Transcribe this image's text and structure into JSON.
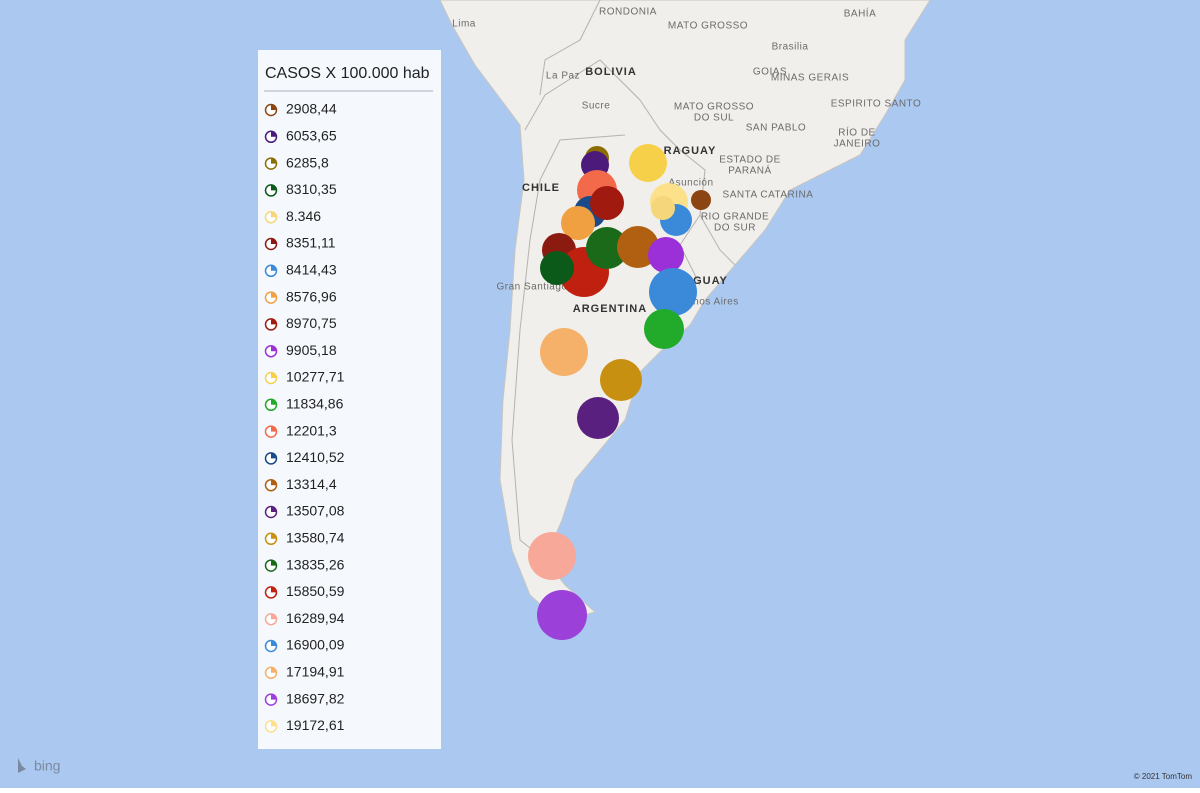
{
  "legend": {
    "title": "CASOS X 100.000 hab",
    "entries": [
      {
        "label": "2908,44",
        "color": "#8b4513"
      },
      {
        "label": "6053,65",
        "color": "#4b1a7a"
      },
      {
        "label": "6285,8",
        "color": "#8b6d00"
      },
      {
        "label": "8310,35",
        "color": "#0b5a1a"
      },
      {
        "label": "8.346",
        "color": "#f5d67a"
      },
      {
        "label": "8351,11",
        "color": "#8b1a10"
      },
      {
        "label": "8414,43",
        "color": "#3a8ad9"
      },
      {
        "label": "8576,96",
        "color": "#f0a040"
      },
      {
        "label": "8970,75",
        "color": "#a01a10"
      },
      {
        "label": "9905,18",
        "color": "#9b30d9"
      },
      {
        "label": "10277,71",
        "color": "#f7d04a"
      },
      {
        "label": "11834,86",
        "color": "#22aa2a"
      },
      {
        "label": "12201,3",
        "color": "#f26a4a"
      },
      {
        "label": "12410,52",
        "color": "#1a4a8a"
      },
      {
        "label": "13314,4",
        "color": "#b06010"
      },
      {
        "label": "13507,08",
        "color": "#5a2080"
      },
      {
        "label": "13580,74",
        "color": "#c79010"
      },
      {
        "label": "13835,26",
        "color": "#1a6a1a"
      },
      {
        "label": "15850,59",
        "color": "#c02010"
      },
      {
        "label": "16289,94",
        "color": "#f7a898"
      },
      {
        "label": "16900,09",
        "color": "#3a8ad9"
      },
      {
        "label": "17194,91",
        "color": "#f5b06a"
      },
      {
        "label": "18697,82",
        "color": "#9b40d9"
      },
      {
        "label": "19172,61",
        "color": "#fde08a"
      }
    ]
  },
  "map_labels": [
    "Lima",
    "RONDONIA",
    "MATO GROSSO",
    "BAHÍA",
    "Brasilia",
    "GOIAS",
    "MINAS GERAIS",
    "BOLIVIA",
    "La Paz",
    "Sucre",
    "MATO GROSSO",
    "DO SUL",
    "ESPIRITO SANTO",
    "SAN PABLO",
    "RÍO DE",
    "JANEIRO",
    "RAGUAY",
    "ESTADO DE",
    "PARANÁ",
    "Asunción",
    "SANTA CATARINA",
    "RIO GRANDE",
    "DO SUR",
    "CHILE",
    "Gran Santiago",
    "ARGENTINA",
    "UGUAY",
    "nos Aires"
  ],
  "footer": {
    "brand": "bing",
    "copyright": "© 2021 TomTom"
  }
}
